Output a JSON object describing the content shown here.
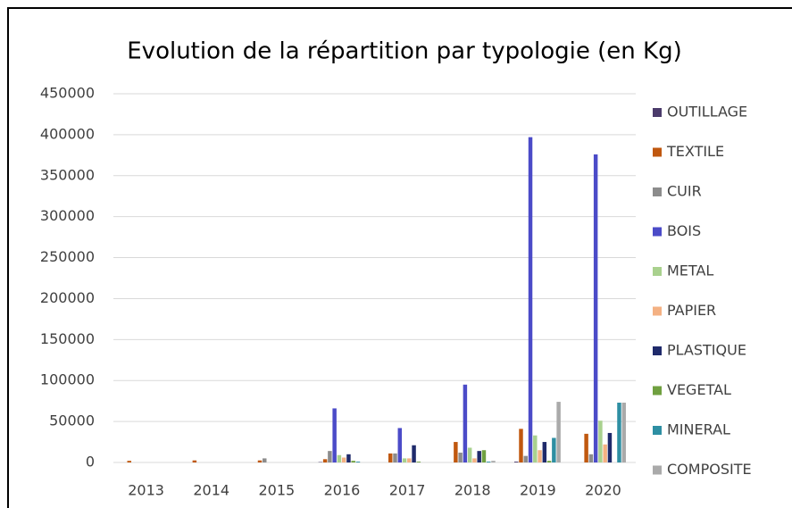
{
  "chart_data": {
    "type": "bar",
    "title": "Evolution de la répartition par typologie (en Kg)",
    "categories": [
      "2013",
      "2014",
      "2015",
      "2016",
      "2017",
      "2018",
      "2019",
      "2020"
    ],
    "series": [
      {
        "name": "OUTILLAGE",
        "color": "#4b3b6b",
        "values": [
          0,
          0,
          0,
          500,
          0,
          0,
          1000,
          0
        ]
      },
      {
        "name": "TEXTILE",
        "color": "#c0580f",
        "values": [
          2000,
          2500,
          2500,
          4000,
          11000,
          25000,
          41000,
          35000
        ]
      },
      {
        "name": "CUIR",
        "color": "#8c8c8c",
        "values": [
          0,
          0,
          5000,
          14000,
          11000,
          12000,
          8000,
          10000
        ]
      },
      {
        "name": "BOIS",
        "color": "#4b4bc8",
        "values": [
          0,
          0,
          0,
          66000,
          42000,
          95000,
          397000,
          376000
        ]
      },
      {
        "name": "METAL",
        "color": "#a9d18e",
        "values": [
          0,
          0,
          0,
          9000,
          5000,
          18000,
          33000,
          51000
        ]
      },
      {
        "name": "PAPIER",
        "color": "#f4b183",
        "values": [
          0,
          0,
          0,
          6000,
          5000,
          5000,
          15000,
          22000
        ]
      },
      {
        "name": "PLASTIQUE",
        "color": "#1f2a6b",
        "values": [
          0,
          0,
          0,
          10000,
          21000,
          14000,
          25000,
          36000
        ]
      },
      {
        "name": "VEGETAL",
        "color": "#70a040",
        "values": [
          0,
          0,
          0,
          2000,
          1000,
          15000,
          2000,
          0
        ]
      },
      {
        "name": "MINERAL",
        "color": "#2e8fa3",
        "values": [
          0,
          0,
          0,
          1000,
          0,
          1000,
          30000,
          73000
        ]
      },
      {
        "name": "COMPOSITE",
        "color": "#aaaaaa",
        "values": [
          0,
          0,
          0,
          0,
          0,
          2000,
          74000,
          73000
        ]
      }
    ],
    "ylim": [
      0,
      450000
    ],
    "yticks": [
      0,
      50000,
      100000,
      150000,
      200000,
      250000,
      300000,
      350000,
      400000,
      450000
    ],
    "grid": true,
    "legend": "right"
  }
}
